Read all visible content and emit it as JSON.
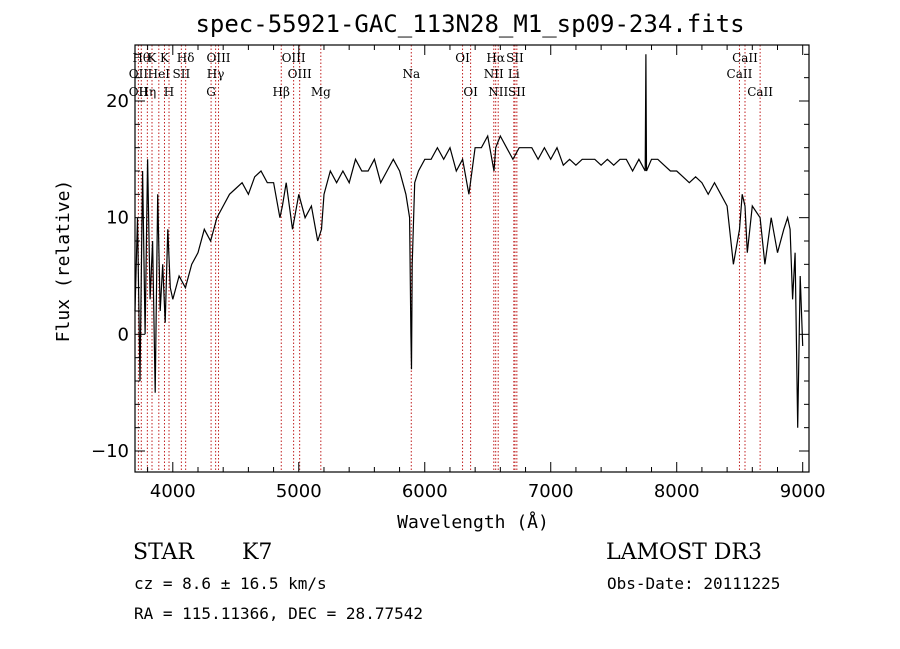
{
  "chart_data": {
    "type": "line",
    "title": "spec-55921-GAC_113N28_M1_sp09-234.fits",
    "xlabel": "Wavelength (Å)",
    "ylabel": "Flux (relative)",
    "xlim": [
      3700,
      9050
    ],
    "ylim": [
      -11.8,
      24.8
    ],
    "xticks": [
      4000,
      5000,
      6000,
      7000,
      8000,
      9000
    ],
    "xtick_labels": [
      "4000",
      "5000",
      "6000",
      "7000",
      "8000",
      "9000"
    ],
    "yticks": [
      -10,
      0,
      10,
      20
    ],
    "ytick_labels": [
      "−10",
      "0",
      "10",
      "20"
    ],
    "grid": false,
    "series": [
      {
        "name": "spectrum",
        "x": [
          3700,
          3720,
          3740,
          3760,
          3780,
          3800,
          3820,
          3840,
          3860,
          3880,
          3900,
          3920,
          3940,
          3960,
          3980,
          4000,
          4050,
          4100,
          4150,
          4200,
          4250,
          4300,
          4350,
          4400,
          4450,
          4500,
          4550,
          4600,
          4650,
          4700,
          4750,
          4800,
          4850,
          4870,
          4900,
          4950,
          5000,
          5050,
          5100,
          5150,
          5180,
          5200,
          5250,
          5300,
          5350,
          5400,
          5450,
          5500,
          5550,
          5600,
          5650,
          5700,
          5750,
          5800,
          5850,
          5880,
          5890,
          5895,
          5900,
          5920,
          5950,
          6000,
          6050,
          6100,
          6150,
          6200,
          6250,
          6300,
          6350,
          6400,
          6450,
          6500,
          6550,
          6563,
          6600,
          6650,
          6700,
          6750,
          6800,
          6850,
          6900,
          6950,
          7000,
          7050,
          7100,
          7150,
          7200,
          7250,
          7300,
          7350,
          7400,
          7450,
          7500,
          7550,
          7600,
          7650,
          7700,
          7750,
          7755,
          7760,
          7800,
          7850,
          7900,
          7950,
          8000,
          8050,
          8100,
          8150,
          8200,
          8250,
          8300,
          8350,
          8400,
          8450,
          8498,
          8520,
          8542,
          8560,
          8600,
          8662,
          8700,
          8750,
          8800,
          8850,
          8880,
          8900,
          8920,
          8940,
          8960,
          8980,
          9000
        ],
        "y": [
          2,
          10,
          -4,
          14,
          0,
          15,
          3,
          8,
          -5,
          12,
          2,
          6,
          1,
          9,
          4,
          3,
          5,
          4,
          6,
          7,
          9,
          8,
          10,
          11,
          12,
          12.5,
          13,
          12,
          13.5,
          14,
          13,
          13,
          10,
          11,
          13,
          9,
          12,
          10,
          11,
          8,
          9,
          12,
          14,
          13,
          14,
          13,
          15,
          14,
          14,
          15,
          13,
          14,
          15,
          14,
          12,
          10,
          0,
          -3,
          6,
          13,
          14,
          15,
          15,
          16,
          15,
          16,
          14,
          15,
          12,
          16,
          16,
          17,
          14,
          16,
          17,
          16,
          15,
          16,
          16,
          16,
          15,
          16,
          15,
          16,
          14.5,
          15,
          14.5,
          15,
          15,
          15,
          14.5,
          15,
          14.5,
          15,
          15,
          14,
          15,
          14,
          24,
          14,
          15,
          15,
          14.5,
          14,
          14,
          13.5,
          13,
          13.5,
          13,
          12,
          13,
          12,
          11,
          6,
          9,
          12,
          11,
          7,
          11,
          10,
          6,
          10,
          7,
          9,
          10,
          9,
          3,
          7,
          -8,
          5,
          -1
        ]
      }
    ],
    "line_markers": [
      {
        "wave": 3750,
        "label": "Hθ",
        "row": 1
      },
      {
        "wave": 3727,
        "label": "OII",
        "row": 2
      },
      {
        "wave": 3727,
        "label": "OII",
        "row": 3
      },
      {
        "wave": 3798,
        "label": "Hη",
        "row": 3
      },
      {
        "wave": 3835,
        "label": "K",
        "row": 1
      },
      {
        "wave": 3889,
        "label": "HeI",
        "row": 2
      },
      {
        "wave": 3934,
        "label": "K",
        "row": 1
      },
      {
        "wave": 3970,
        "label": "H",
        "row": 3
      },
      {
        "wave": 4068,
        "label": "SII",
        "row": 2
      },
      {
        "wave": 4102,
        "label": "Hδ",
        "row": 1
      },
      {
        "wave": 4304,
        "label": "G",
        "row": 3
      },
      {
        "wave": 4340,
        "label": "Hγ",
        "row": 2
      },
      {
        "wave": 4363,
        "label": "OIII",
        "row": 1
      },
      {
        "wave": 4861,
        "label": "Hβ",
        "row": 3
      },
      {
        "wave": 4959,
        "label": "OIII",
        "row": 1
      },
      {
        "wave": 5007,
        "label": "OIII",
        "row": 2
      },
      {
        "wave": 5175,
        "label": "Mg",
        "row": 3
      },
      {
        "wave": 5893,
        "label": "Na",
        "row": 2
      },
      {
        "wave": 6300,
        "label": "OI",
        "row": 1
      },
      {
        "wave": 6364,
        "label": "OI",
        "row": 3
      },
      {
        "wave": 6548,
        "label": "NII",
        "row": 2
      },
      {
        "wave": 6563,
        "label": "Hα",
        "row": 1
      },
      {
        "wave": 6583,
        "label": "NII",
        "row": 3
      },
      {
        "wave": 6707,
        "label": "Li",
        "row": 2
      },
      {
        "wave": 6716,
        "label": "SII",
        "row": 1
      },
      {
        "wave": 6731,
        "label": "SII",
        "row": 3
      },
      {
        "wave": 8498,
        "label": "CaII",
        "row": 2
      },
      {
        "wave": 8542,
        "label": "CaII",
        "row": 1
      },
      {
        "wave": 8662,
        "label": "CaII",
        "row": 3
      }
    ]
  },
  "info": {
    "object_class": "STAR",
    "subclass": "K7",
    "survey": "LAMOST DR3",
    "redshift": "cz = 8.6 ± 16.5 km/s",
    "obs_date": "Obs-Date: 20111225",
    "coords": "RA = 115.11366, DEC =  28.77542"
  }
}
